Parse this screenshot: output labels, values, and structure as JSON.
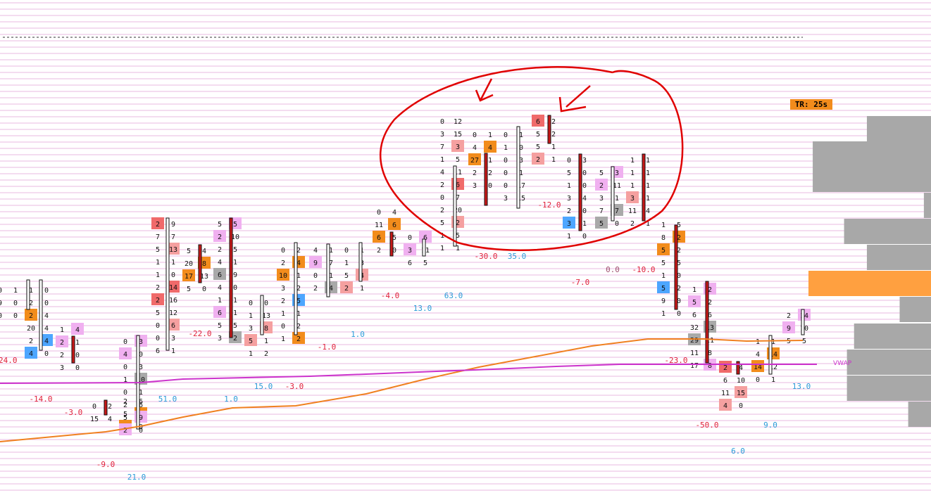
{
  "tr_badge": "TR: 25s",
  "vwap_label": "VWAP",
  "colors": {
    "background": "#ffffff",
    "grid": "#e8b8e0",
    "cell_red": "#f06a6a",
    "cell_salmon": "#f5a0a0",
    "cell_blue": "#4da6ff",
    "cell_gray": "#a9a9a9",
    "cell_orange": "#f28c1c",
    "cell_pink": "#f0b0f0",
    "poc_border": "#e8e000",
    "delta_neg": "#e0203a",
    "delta_pos": "#2a9ad8",
    "vwap": "#cc33cc",
    "ema": "#f08020",
    "profile": "#a8a8a8",
    "profile_poc": "#ffa040",
    "annotation": "#e00000"
  },
  "chart_data": {
    "type": "footprint",
    "title": "",
    "columns": [
      {
        "delta": "-24.0",
        "cells": [
          [
            "0",
            "1"
          ],
          [
            "9",
            "0"
          ],
          [
            "0",
            "0"
          ]
        ]
      },
      {
        "delta": "",
        "cells": [
          [
            "1",
            "0"
          ],
          [
            "2",
            "0"
          ],
          [
            "2",
            "4"
          ],
          [
            "20",
            "4"
          ],
          [
            "2",
            "4"
          ],
          [
            "4",
            "0"
          ]
        ]
      },
      {
        "delta": "-14.0",
        "cells": [
          [
            "1",
            "4"
          ],
          [
            "2",
            "1"
          ],
          [
            "2",
            "0"
          ],
          [
            "3",
            "0"
          ]
        ]
      },
      {
        "delta": "-3.0",
        "cells": [
          [
            "0",
            "2"
          ],
          [
            "15",
            "4"
          ]
        ]
      },
      {
        "delta": "-9.0",
        "cells": [
          [
            "2",
            "6"
          ],
          [
            "5",
            "9"
          ],
          [
            "2",
            "0"
          ]
        ]
      },
      {
        "delta": "21.0",
        "cells": [
          [
            "0",
            "3"
          ],
          [
            "4",
            "0"
          ],
          [
            "0",
            "3"
          ],
          [
            "1",
            "10"
          ],
          [
            "0",
            "1"
          ],
          [
            "2",
            "6"
          ],
          [
            "5",
            "9"
          ],
          [
            "2",
            "0"
          ]
        ]
      },
      {
        "delta": "51.0",
        "cells": [
          [
            "2",
            "9"
          ],
          [
            "7",
            "7"
          ],
          [
            "5",
            "13"
          ],
          [
            "1",
            "1"
          ],
          [
            "1",
            "0"
          ],
          [
            "2",
            "14"
          ],
          [
            "2",
            "16"
          ],
          [
            "5",
            "12"
          ],
          [
            "0",
            "6"
          ],
          [
            "0",
            "3"
          ],
          [
            "6",
            "1"
          ]
        ]
      },
      {
        "delta": "-22.0",
        "cells": [
          [
            "5",
            "4"
          ],
          [
            "20",
            "8"
          ],
          [
            "17",
            "13"
          ],
          [
            "5",
            "0"
          ]
        ]
      },
      {
        "delta": "1.0",
        "cells": [
          [
            "5",
            "5"
          ],
          [
            "2",
            "10"
          ],
          [
            "2",
            "5"
          ],
          [
            "4",
            "1"
          ],
          [
            "6",
            "9"
          ],
          [
            "4",
            "0"
          ],
          [
            "1",
            "1"
          ],
          [
            "6",
            "1"
          ],
          [
            "5",
            "5"
          ],
          [
            "3",
            "2"
          ]
        ]
      },
      {
        "delta": "15.0",
        "cells": [
          [
            "0",
            "0"
          ],
          [
            "1",
            "13"
          ],
          [
            "3",
            "8"
          ],
          [
            "5",
            "1"
          ],
          [
            "1",
            "2"
          ]
        ]
      },
      {
        "delta": "-3.0",
        "cells": [
          [
            "0",
            "2"
          ],
          [
            "2",
            "4"
          ],
          [
            "10",
            "1"
          ],
          [
            "3",
            "2"
          ],
          [
            "2",
            "5"
          ],
          [
            "1",
            "1"
          ],
          [
            "0",
            "2"
          ],
          [
            "1",
            "2"
          ]
        ]
      },
      {
        "delta": "-1.0",
        "cells": [
          [
            "4",
            "1"
          ],
          [
            "9",
            "7"
          ],
          [
            "0",
            "1"
          ],
          [
            "2",
            "4"
          ]
        ]
      },
      {
        "delta": "1.0",
        "cells": [
          [
            "0",
            "1"
          ],
          [
            "1",
            "3"
          ],
          [
            "5",
            "4"
          ],
          [
            "2",
            "1"
          ]
        ]
      },
      {
        "delta": "-4.0",
        "cells": [
          [
            "0",
            "4"
          ],
          [
            "11",
            "6"
          ],
          [
            "6",
            "5"
          ],
          [
            "2",
            "0"
          ]
        ]
      },
      {
        "delta": "13.0",
        "cells": [
          [
            "0",
            "6"
          ],
          [
            "3",
            "11"
          ],
          [
            "6",
            "5"
          ]
        ]
      },
      {
        "delta": "63.0",
        "cells": [
          [
            "0",
            "12"
          ],
          [
            "3",
            "15"
          ],
          [
            "7",
            "3"
          ],
          [
            "1",
            "5"
          ],
          [
            "4",
            "11"
          ],
          [
            "2",
            "6"
          ],
          [
            "0",
            "7"
          ],
          [
            "2",
            "20"
          ],
          [
            "5",
            "2"
          ],
          [
            "1",
            "5"
          ],
          [
            "1",
            "1"
          ]
        ]
      },
      {
        "delta": "-30.0",
        "cells": [
          [
            "0",
            "1"
          ],
          [
            "4",
            "4"
          ],
          [
            "27",
            "1"
          ],
          [
            "2",
            "2"
          ],
          [
            "3",
            "0"
          ]
        ]
      },
      {
        "delta": "35.0",
        "cells": [
          [
            "0",
            "1"
          ],
          [
            "1",
            "0"
          ],
          [
            "0",
            "3"
          ],
          [
            "0",
            "1"
          ],
          [
            "0",
            "17"
          ],
          [
            "3",
            "15"
          ]
        ]
      },
      {
        "delta": "-12.0",
        "cells": [
          [
            "6",
            "2"
          ],
          [
            "5",
            "2"
          ],
          [
            "5",
            "1"
          ],
          [
            "2",
            "1"
          ]
        ]
      },
      {
        "delta": "-7.0",
        "cells": [
          [
            "0",
            "3"
          ],
          [
            "5",
            "0"
          ],
          [
            "1",
            "0"
          ],
          [
            "3",
            "4"
          ],
          [
            "2",
            "0"
          ],
          [
            "3",
            "1"
          ],
          [
            "1",
            "0"
          ]
        ]
      },
      {
        "delta": "0.0",
        "cells": [
          [
            "5",
            "3"
          ],
          [
            "2",
            "11"
          ],
          [
            "3",
            "1"
          ],
          [
            "7",
            "7"
          ],
          [
            "5",
            "0"
          ]
        ]
      },
      {
        "delta": "-10.0",
        "cells": [
          [
            "1",
            "1"
          ],
          [
            "1",
            "1"
          ],
          [
            "1",
            "1"
          ],
          [
            "3",
            "1"
          ],
          [
            "11",
            "4"
          ],
          [
            "2",
            "1"
          ]
        ]
      },
      {
        "delta": "-23.0",
        "cells": [
          [
            "1",
            "5"
          ],
          [
            "8",
            "2"
          ],
          [
            "5",
            "2"
          ],
          [
            "5",
            "5"
          ],
          [
            "1",
            "0"
          ],
          [
            "5",
            "2"
          ],
          [
            "9",
            "0"
          ],
          [
            "1",
            "0"
          ]
        ]
      },
      {
        "delta": "-50.0",
        "cells": [
          [
            "1",
            "2"
          ],
          [
            "5",
            "2"
          ],
          [
            "6",
            "6"
          ],
          [
            "32",
            "13"
          ],
          [
            "29",
            "11"
          ],
          [
            "11",
            "8"
          ],
          [
            "17",
            "8"
          ]
        ]
      },
      {
        "delta": "6.0",
        "cells": [
          [
            "2",
            "4"
          ],
          [
            "6",
            "10"
          ],
          [
            "11",
            "15"
          ],
          [
            "4",
            "0"
          ]
        ]
      },
      {
        "delta": "9.0",
        "cells": [
          [
            "1",
            "1"
          ],
          [
            "4",
            "14"
          ],
          [
            "14",
            "12"
          ],
          [
            "0",
            "1"
          ]
        ]
      },
      {
        "delta": "13.0",
        "cells": [
          [
            "2",
            "14"
          ],
          [
            "9",
            "10"
          ],
          [
            "5",
            "5"
          ]
        ]
      }
    ],
    "profile": [
      {
        "volume": 90
      },
      {
        "volume": 166
      },
      {
        "volume": 166
      },
      {
        "volume": 10
      },
      {
        "volume": 122
      },
      {
        "volume": 90
      },
      {
        "volume": 172,
        "poc": true
      },
      {
        "volume": 44
      },
      {
        "volume": 108
      },
      {
        "volume": 118
      },
      {
        "volume": 118
      },
      {
        "volume": 32
      }
    ]
  }
}
